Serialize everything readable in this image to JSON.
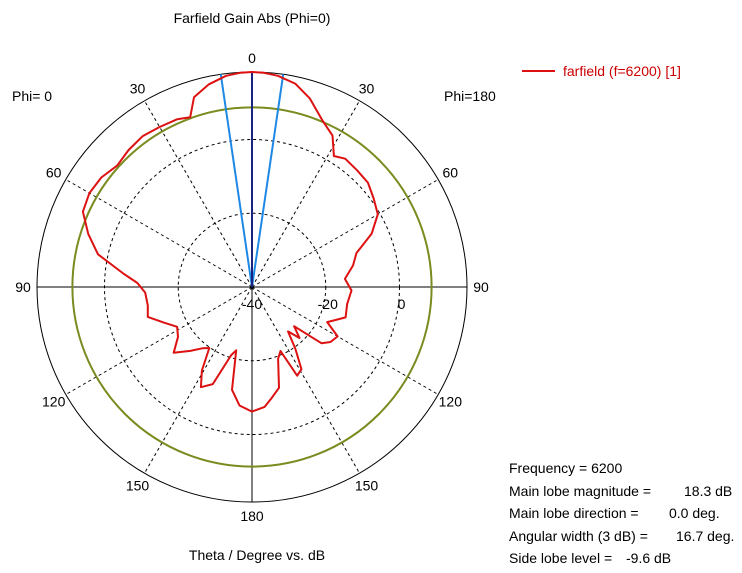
{
  "chart_data": {
    "type": "polar",
    "title": "Farfield Gain Abs (Phi=0)",
    "xlabel": "Theta / Degree vs. dB",
    "left_label": "Phi=  0",
    "right_label": "Phi=180",
    "angle_labels": {
      "0": "0",
      "30": "30",
      "60": "60",
      "90": "90",
      "120": "120",
      "150": "150",
      "180": "180"
    },
    "radial_ticks": [
      -40,
      -20,
      0
    ],
    "radial_tick_labels": [
      "-40",
      "-20",
      "0"
    ],
    "r_range_db": [
      -40,
      18.3
    ],
    "reference_circle_db": 8.7,
    "beamwidth_lines_deg": [
      -8.35,
      8.35
    ],
    "main_lobe_line_deg": 0,
    "series": [
      {
        "name": "farfield (f=6200) [1]",
        "color": "#dd1111",
        "points_theta_deg_gain_db": [
          [
            -180,
            -6.2
          ],
          [
            -174,
            -7.3
          ],
          [
            -170,
            -9.4
          ],
          [
            -165,
            -11.7
          ],
          [
            -160,
            -19.3
          ],
          [
            -156,
            -21.0
          ],
          [
            -153,
            -13.0
          ],
          [
            -149,
            -14.0
          ],
          [
            -145,
            -19.5
          ],
          [
            -141,
            -24.5
          ],
          [
            -137,
            -21.1
          ],
          [
            -133,
            -24.4
          ],
          [
            -129,
            -15.8
          ],
          [
            -125,
            -14.0
          ],
          [
            -120,
            -13.2
          ],
          [
            -115,
            -17.5
          ],
          [
            -108,
            -13.3
          ],
          [
            -100,
            -13.8
          ],
          [
            -92,
            -13.0
          ],
          [
            -85,
            -14.7
          ],
          [
            -78,
            -12.0
          ],
          [
            -72,
            -10.2
          ],
          [
            -66,
            -4.5
          ],
          [
            -60,
            -0.6
          ],
          [
            -54,
            0.8
          ],
          [
            -48,
            2.3
          ],
          [
            -42,
            2.6
          ],
          [
            -36,
            3.0
          ],
          [
            -32,
            1.9
          ],
          [
            -28,
            6.5
          ],
          [
            -23,
            9.0
          ],
          [
            -17,
            13.5
          ],
          [
            -12,
            16.4
          ],
          [
            -7,
            17.7
          ],
          [
            -3,
            18.2
          ],
          [
            0,
            18.3
          ],
          [
            3,
            18.2
          ],
          [
            7,
            17.7
          ],
          [
            12,
            16.2
          ],
          [
            17,
            13.8
          ],
          [
            20,
            9.0
          ],
          [
            24,
            9.8
          ],
          [
            30,
            10.1
          ],
          [
            36,
            10.5
          ],
          [
            42,
            10.0
          ],
          [
            48,
            9.2
          ],
          [
            54,
            10.5
          ],
          [
            60,
            10.9
          ],
          [
            66,
            10.2
          ],
          [
            72,
            6.7
          ],
          [
            78,
            2.7
          ],
          [
            84,
            -4.9
          ],
          [
            88,
            -8.9
          ],
          [
            93,
            -11.0
          ],
          [
            100,
            -11.3
          ],
          [
            106,
            -10.6
          ],
          [
            112,
            -14.2
          ],
          [
            118,
            -17.0
          ],
          [
            124,
            -15.8
          ],
          [
            130,
            -12.3
          ],
          [
            136,
            -15.9
          ],
          [
            141,
            -18.6
          ],
          [
            145,
            -19.8
          ],
          [
            149,
            -13.6
          ],
          [
            153,
            -9.5
          ],
          [
            158,
            -11.6
          ],
          [
            163,
            -20.7
          ],
          [
            166,
            -22.3
          ],
          [
            169,
            -11.6
          ],
          [
            174,
            -7.7
          ],
          [
            180,
            -6.2
          ]
        ]
      }
    ]
  },
  "info": {
    "rows": [
      {
        "key": "Frequency = 6200",
        "value": ""
      },
      {
        "key": "Main lobe magnitude =",
        "value": "18.3 dB"
      },
      {
        "key": "Main lobe direction =",
        "value": "0.0 deg."
      },
      {
        "key": "Angular width (3 dB) =",
        "value": "16.7 deg."
      },
      {
        "key": "Side lobe level =",
        "value": "-9.6 dB"
      }
    ]
  },
  "colors": {
    "curve": "#dd1111",
    "reference_circle": "#7a8b1f",
    "main_lobe_line": "#1a237e",
    "beamwidth_lines": "#1e88e5",
    "grid": "#000000"
  }
}
